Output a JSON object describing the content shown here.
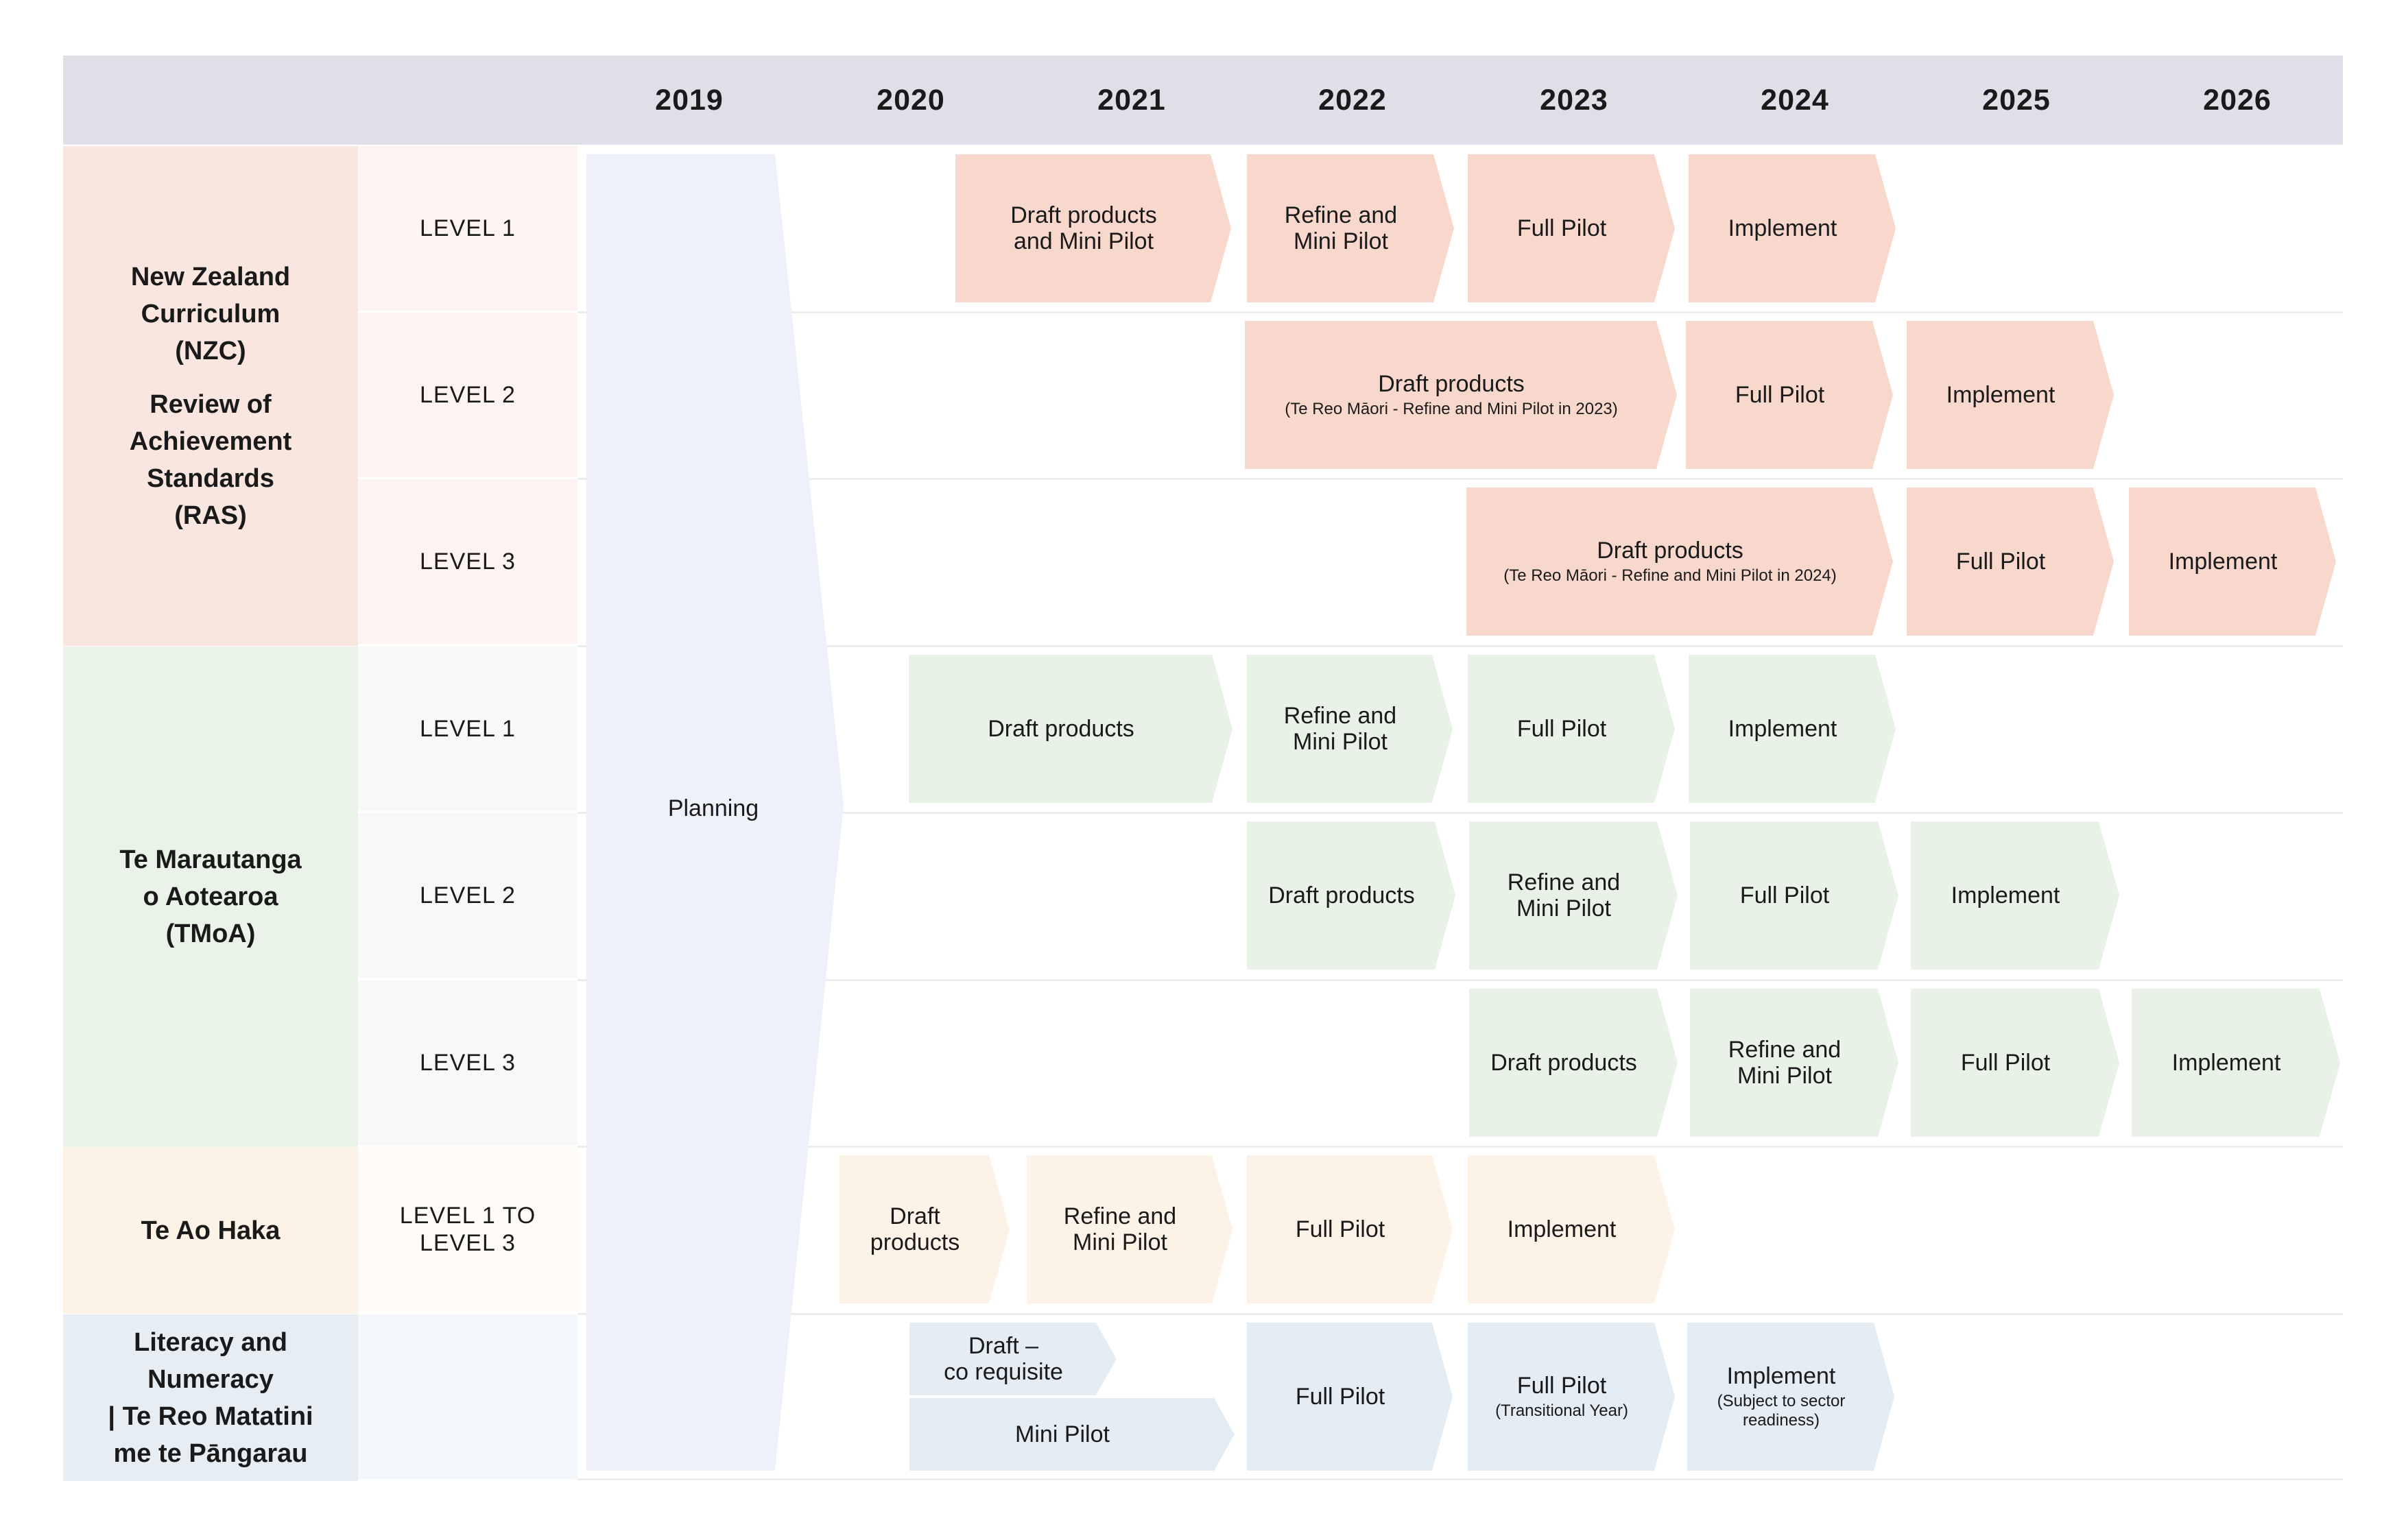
{
  "colors": {
    "header": "#e0dfe8",
    "planning": "#eef1f9",
    "nzc_group": "#f9e6de",
    "nzc_level": "#fdf4f1",
    "nzc_chevron": "#f8d8cc",
    "tmoa_group": "#eaf3e8",
    "tmoa_level": "#f6f9f5",
    "tmoa_chevron": "#e9f2e7",
    "haka_group": "#fdf2e6",
    "haka_level": "#fffbf6",
    "haka_chevron": "#fdf2e6",
    "lit_group": "#e6eef4",
    "lit_level": "#f4f7fa",
    "lit_chevron": "#e4edf3"
  },
  "years": [
    "2019",
    "2020",
    "2021",
    "2022",
    "2023",
    "2024",
    "2025",
    "2026"
  ],
  "planning_label": "Planning",
  "groups": [
    {
      "title": "New Zealand\nCurriculum\n(NZC)",
      "subtitle": "Review of\nAchievement\nStandards\n(RAS)"
    },
    {
      "title": "Te Marautanga\no Aotearoa\n(TMoA)",
      "subtitle": ""
    },
    {
      "title": "Te Ao Haka",
      "subtitle": ""
    },
    {
      "title": "Literacy and\nNumeracy\n| Te Reo Matatini\nme te Pāngarau",
      "subtitle": ""
    }
  ],
  "levels": [
    "LEVEL 1",
    "LEVEL 2",
    "LEVEL 3",
    "LEVEL 1",
    "LEVEL 2",
    "LEVEL 3",
    "LEVEL 1 TO\nLEVEL 3",
    ""
  ],
  "phases": [
    {
      "main": "Draft products\nand Mini Pilot",
      "sub": ""
    },
    {
      "main": "Refine and\nMini Pilot",
      "sub": ""
    },
    {
      "main": "Full Pilot",
      "sub": ""
    },
    {
      "main": "Implement",
      "sub": ""
    },
    {
      "main": "Draft products",
      "sub": "(Te Reo Māori - Refine and Mini Pilot in 2023)"
    },
    {
      "main": "Full Pilot",
      "sub": ""
    },
    {
      "main": "Implement",
      "sub": ""
    },
    {
      "main": "Draft products",
      "sub": "(Te Reo Māori - Refine and Mini Pilot in 2024)"
    },
    {
      "main": "Full Pilot",
      "sub": ""
    },
    {
      "main": "Implement",
      "sub": ""
    },
    {
      "main": "Draft products",
      "sub": ""
    },
    {
      "main": "Refine and\nMini Pilot",
      "sub": ""
    },
    {
      "main": "Full Pilot",
      "sub": ""
    },
    {
      "main": "Implement",
      "sub": ""
    },
    {
      "main": "Draft products",
      "sub": ""
    },
    {
      "main": "Refine and\nMini Pilot",
      "sub": ""
    },
    {
      "main": "Full Pilot",
      "sub": ""
    },
    {
      "main": "Implement",
      "sub": ""
    },
    {
      "main": "Draft products",
      "sub": ""
    },
    {
      "main": "Refine and\nMini Pilot",
      "sub": ""
    },
    {
      "main": "Full Pilot",
      "sub": ""
    },
    {
      "main": "Implement",
      "sub": ""
    },
    {
      "main": "Draft\nproducts",
      "sub": ""
    },
    {
      "main": "Refine and\nMini Pilot",
      "sub": ""
    },
    {
      "main": "Full Pilot",
      "sub": ""
    },
    {
      "main": "Implement",
      "sub": ""
    },
    {
      "main": "Draft –\nco requisite",
      "sub": ""
    },
    {
      "main": "Mini Pilot",
      "sub": ""
    },
    {
      "main": "Full Pilot",
      "sub": ""
    },
    {
      "main": "Full Pilot",
      "sub": "(Transitional Year)"
    },
    {
      "main": "Implement",
      "sub": "(Subject to sector\nreadiness)"
    }
  ]
}
